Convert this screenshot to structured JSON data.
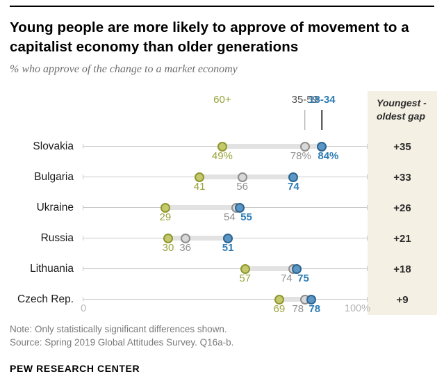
{
  "header": {
    "title": "Young people are more likely to approve of movement to a capitalist economy than older generations",
    "subtitle": "% who approve of the change to a market economy"
  },
  "chart_data": {
    "type": "dot-plot",
    "title": "Young people are more likely to approve of movement to a capitalist economy than older generations",
    "subtitle": "% who approve of the change to a market economy",
    "series_labels": {
      "old": "60+",
      "mid": "35-59",
      "young": "18-34"
    },
    "gap_header": [
      "Youngest -",
      "oldest gap"
    ],
    "axis": {
      "min": 0,
      "max": 100,
      "min_label": "0",
      "max_label": "100%",
      "grid": "off"
    },
    "colors": {
      "old_fill": "#c4c96c",
      "old_stroke": "#8e962f",
      "old_text": "#9aa23b",
      "mid_fill": "#d8d8d8",
      "mid_stroke": "#8d8d8d",
      "mid_text": "#909090",
      "young_fill": "#5b96c4",
      "young_stroke": "#2b6490",
      "young_text": "#2e7cb5",
      "gap_column_bg": "#f4f0e3"
    },
    "rows": [
      {
        "country": "Slovakia",
        "values": {
          "old": 49,
          "mid": 78,
          "young": 84
        },
        "labels": {
          "old": "49%",
          "mid": "78%",
          "young": "84%"
        },
        "gap": "+35",
        "label_dx": {
          "mid": -6,
          "young": 9
        }
      },
      {
        "country": "Bulgaria",
        "values": {
          "old": 41,
          "mid": 56,
          "young": 74
        },
        "labels": {
          "old": "41",
          "mid": "56",
          "young": "74"
        },
        "gap": "+33"
      },
      {
        "country": "Ukraine",
        "values": {
          "old": 29,
          "mid": 54,
          "young": 55
        },
        "labels": {
          "old": "29",
          "mid": "54",
          "young": "55"
        },
        "gap": "+26",
        "label_dx": {
          "mid": -10,
          "young": 10
        }
      },
      {
        "country": "Russia",
        "values": {
          "old": 30,
          "mid": 36,
          "young": 51
        },
        "labels": {
          "old": "30",
          "mid": "36",
          "young": "51"
        },
        "gap": "+21"
      },
      {
        "country": "Lithuania",
        "values": {
          "old": 57,
          "mid": 74,
          "young": 75
        },
        "labels": {
          "old": "57",
          "mid": "74",
          "young": "75"
        },
        "gap": "+18",
        "label_dx": {
          "mid": -10,
          "young": 10
        }
      },
      {
        "country": "Czech Rep.",
        "values": {
          "old": 69,
          "mid": 78,
          "young": 78
        },
        "labels": {
          "old": "69",
          "mid": "78",
          "young": "78"
        },
        "gap": "+9",
        "label_dx": {
          "mid": -10,
          "young": 14
        },
        "dot_dx": {
          "young": 9
        }
      }
    ]
  },
  "footer": {
    "note": "Note: Only statistically significant differences shown.",
    "source": "Source: Spring 2019 Global Attitudes Survey. Q16a-b.",
    "brand": "PEW RESEARCH CENTER"
  }
}
